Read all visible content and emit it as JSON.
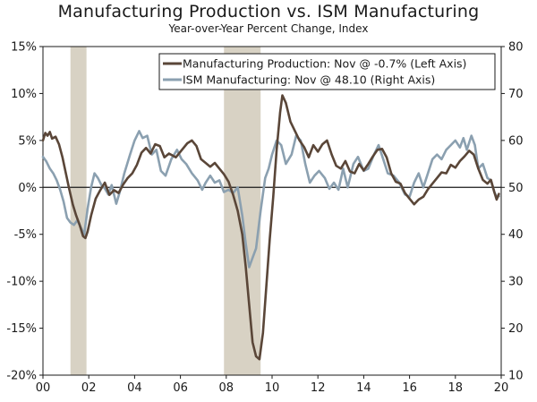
{
  "chart_data": {
    "type": "line",
    "title": "Manufacturing Production vs. ISM Manufacturing",
    "subtitle": "Year-over-Year Percent Change, Index",
    "x_axis": {
      "min": 2000,
      "max": 2020,
      "ticks": [
        2000,
        2002,
        2004,
        2006,
        2008,
        2010,
        2012,
        2014,
        2016,
        2018,
        2020
      ],
      "tick_labels": [
        "00",
        "02",
        "04",
        "06",
        "08",
        "10",
        "12",
        "14",
        "16",
        "18",
        "20"
      ]
    },
    "y_left": {
      "min": -20,
      "max": 15,
      "ticks": [
        15,
        10,
        5,
        0,
        -5,
        -10,
        -15,
        -20
      ],
      "tick_labels": [
        "15%",
        "10%",
        "5%",
        "0%",
        "-5%",
        "-10%",
        "-15%",
        "-20%"
      ]
    },
    "y_right": {
      "min": 10,
      "max": 80,
      "ticks": [
        80,
        70,
        60,
        50,
        40,
        30,
        20,
        10
      ],
      "tick_labels": [
        "80",
        "70",
        "60",
        "50",
        "40",
        "30",
        "20",
        "10"
      ]
    },
    "recessions": [
      [
        2001.2,
        2001.9
      ],
      [
        2007.9,
        2009.5
      ]
    ],
    "legend": {
      "position": "top-right"
    },
    "series": [
      {
        "name": "Manufacturing Production: Nov @ -0.7% (Left Axis)",
        "axis": "left",
        "color": "#5a4638",
        "points": [
          [
            2000.0,
            5.0
          ],
          [
            2000.1,
            5.8
          ],
          [
            2000.2,
            5.5
          ],
          [
            2000.3,
            5.9
          ],
          [
            2000.4,
            5.2
          ],
          [
            2000.55,
            5.4
          ],
          [
            2000.7,
            4.6
          ],
          [
            2000.85,
            3.2
          ],
          [
            2001.0,
            1.5
          ],
          [
            2001.15,
            -0.2
          ],
          [
            2001.3,
            -1.8
          ],
          [
            2001.45,
            -3.0
          ],
          [
            2001.6,
            -4.0
          ],
          [
            2001.75,
            -5.2
          ],
          [
            2001.85,
            -5.4
          ],
          [
            2001.95,
            -4.7
          ],
          [
            2002.1,
            -3.0
          ],
          [
            2002.3,
            -1.2
          ],
          [
            2002.5,
            -0.3
          ],
          [
            2002.7,
            0.5
          ],
          [
            2002.9,
            -0.8
          ],
          [
            2003.1,
            -0.3
          ],
          [
            2003.3,
            -0.6
          ],
          [
            2003.5,
            0.3
          ],
          [
            2003.7,
            1.0
          ],
          [
            2003.9,
            1.5
          ],
          [
            2004.1,
            2.4
          ],
          [
            2004.3,
            3.7
          ],
          [
            2004.5,
            4.2
          ],
          [
            2004.7,
            3.6
          ],
          [
            2004.9,
            4.6
          ],
          [
            2005.1,
            4.4
          ],
          [
            2005.3,
            3.2
          ],
          [
            2005.5,
            3.6
          ],
          [
            2005.8,
            3.2
          ],
          [
            2006.0,
            3.8
          ],
          [
            2006.3,
            4.7
          ],
          [
            2006.5,
            5.0
          ],
          [
            2006.7,
            4.4
          ],
          [
            2006.9,
            3.0
          ],
          [
            2007.1,
            2.6
          ],
          [
            2007.3,
            2.2
          ],
          [
            2007.5,
            2.6
          ],
          [
            2007.7,
            2.0
          ],
          [
            2007.9,
            1.4
          ],
          [
            2008.1,
            0.6
          ],
          [
            2008.3,
            -0.8
          ],
          [
            2008.5,
            -2.5
          ],
          [
            2008.7,
            -5.0
          ],
          [
            2008.85,
            -8.5
          ],
          [
            2009.0,
            -12.5
          ],
          [
            2009.15,
            -16.5
          ],
          [
            2009.3,
            -18.0
          ],
          [
            2009.45,
            -18.3
          ],
          [
            2009.6,
            -15.5
          ],
          [
            2009.75,
            -10.5
          ],
          [
            2009.9,
            -5.5
          ],
          [
            2010.05,
            -1.0
          ],
          [
            2010.2,
            4.0
          ],
          [
            2010.35,
            8.0
          ],
          [
            2010.45,
            9.8
          ],
          [
            2010.6,
            9.0
          ],
          [
            2010.8,
            7.0
          ],
          [
            2011.0,
            6.0
          ],
          [
            2011.2,
            5.0
          ],
          [
            2011.4,
            4.3
          ],
          [
            2011.6,
            3.2
          ],
          [
            2011.8,
            4.5
          ],
          [
            2012.0,
            3.8
          ],
          [
            2012.2,
            4.6
          ],
          [
            2012.4,
            5.0
          ],
          [
            2012.6,
            3.5
          ],
          [
            2012.8,
            2.3
          ],
          [
            2013.0,
            2.0
          ],
          [
            2013.2,
            2.8
          ],
          [
            2013.4,
            1.7
          ],
          [
            2013.6,
            1.5
          ],
          [
            2013.8,
            2.5
          ],
          [
            2014.0,
            1.8
          ],
          [
            2014.2,
            2.5
          ],
          [
            2014.4,
            3.3
          ],
          [
            2014.6,
            4.0
          ],
          [
            2014.8,
            4.1
          ],
          [
            2015.0,
            3.2
          ],
          [
            2015.2,
            1.5
          ],
          [
            2015.4,
            0.6
          ],
          [
            2015.6,
            0.4
          ],
          [
            2015.8,
            -0.6
          ],
          [
            2016.0,
            -1.2
          ],
          [
            2016.2,
            -1.8
          ],
          [
            2016.4,
            -1.3
          ],
          [
            2016.6,
            -1.0
          ],
          [
            2016.8,
            -0.2
          ],
          [
            2017.0,
            0.4
          ],
          [
            2017.2,
            1.0
          ],
          [
            2017.4,
            1.6
          ],
          [
            2017.6,
            1.5
          ],
          [
            2017.8,
            2.4
          ],
          [
            2018.0,
            2.1
          ],
          [
            2018.2,
            2.8
          ],
          [
            2018.4,
            3.3
          ],
          [
            2018.6,
            3.9
          ],
          [
            2018.8,
            3.5
          ],
          [
            2019.0,
            2.0
          ],
          [
            2019.2,
            0.8
          ],
          [
            2019.4,
            0.4
          ],
          [
            2019.55,
            0.8
          ],
          [
            2019.7,
            -0.5
          ],
          [
            2019.8,
            -1.3
          ],
          [
            2019.9,
            -0.7
          ]
        ]
      },
      {
        "name": "ISM Manufacturing: Nov @ 48.10 (Right Axis)",
        "axis": "right",
        "color": "#8ba0b0",
        "points": [
          [
            2000.0,
            56.5
          ],
          [
            2000.15,
            55.5
          ],
          [
            2000.3,
            54.0
          ],
          [
            2000.45,
            53.0
          ],
          [
            2000.6,
            51.5
          ],
          [
            2000.75,
            49.5
          ],
          [
            2000.9,
            47.0
          ],
          [
            2001.05,
            43.5
          ],
          [
            2001.2,
            42.5
          ],
          [
            2001.35,
            42.0
          ],
          [
            2001.5,
            43.0
          ],
          [
            2001.65,
            41.5
          ],
          [
            2001.8,
            40.0
          ],
          [
            2001.95,
            45.5
          ],
          [
            2002.1,
            50.0
          ],
          [
            2002.25,
            53.0
          ],
          [
            2002.4,
            52.0
          ],
          [
            2002.55,
            50.5
          ],
          [
            2002.7,
            49.8
          ],
          [
            2002.85,
            48.5
          ],
          [
            2003.0,
            50.5
          ],
          [
            2003.2,
            46.5
          ],
          [
            2003.35,
            49.0
          ],
          [
            2003.55,
            53.0
          ],
          [
            2003.8,
            57.0
          ],
          [
            2004.0,
            60.0
          ],
          [
            2004.2,
            62.0
          ],
          [
            2004.35,
            60.5
          ],
          [
            2004.55,
            61.0
          ],
          [
            2004.75,
            57.0
          ],
          [
            2004.95,
            58.0
          ],
          [
            2005.15,
            53.5
          ],
          [
            2005.35,
            52.5
          ],
          [
            2005.6,
            56.0
          ],
          [
            2005.85,
            58.0
          ],
          [
            2006.05,
            56.0
          ],
          [
            2006.25,
            55.0
          ],
          [
            2006.5,
            53.0
          ],
          [
            2006.75,
            51.5
          ],
          [
            2006.95,
            49.5
          ],
          [
            2007.1,
            51.0
          ],
          [
            2007.3,
            52.5
          ],
          [
            2007.5,
            51.0
          ],
          [
            2007.7,
            51.5
          ],
          [
            2007.9,
            49.0
          ],
          [
            2008.1,
            49.5
          ],
          [
            2008.3,
            48.8
          ],
          [
            2008.5,
            50.0
          ],
          [
            2008.7,
            44.0
          ],
          [
            2008.85,
            38.0
          ],
          [
            2009.0,
            33.0
          ],
          [
            2009.15,
            35.0
          ],
          [
            2009.3,
            37.0
          ],
          [
            2009.5,
            45.0
          ],
          [
            2009.7,
            52.0
          ],
          [
            2009.85,
            54.0
          ],
          [
            2010.0,
            57.0
          ],
          [
            2010.2,
            60.0
          ],
          [
            2010.4,
            59.0
          ],
          [
            2010.6,
            55.0
          ],
          [
            2010.85,
            57.0
          ],
          [
            2011.05,
            61.0
          ],
          [
            2011.25,
            60.0
          ],
          [
            2011.45,
            55.0
          ],
          [
            2011.65,
            51.0
          ],
          [
            2011.85,
            52.5
          ],
          [
            2012.05,
            53.5
          ],
          [
            2012.3,
            52.0
          ],
          [
            2012.5,
            49.7
          ],
          [
            2012.7,
            51.0
          ],
          [
            2012.9,
            49.5
          ],
          [
            2013.1,
            54.0
          ],
          [
            2013.3,
            50.0
          ],
          [
            2013.55,
            55.0
          ],
          [
            2013.75,
            56.5
          ],
          [
            2014.0,
            53.5
          ],
          [
            2014.2,
            54.0
          ],
          [
            2014.45,
            57.0
          ],
          [
            2014.65,
            59.0
          ],
          [
            2014.85,
            56.0
          ],
          [
            2015.05,
            53.0
          ],
          [
            2015.3,
            52.5
          ],
          [
            2015.55,
            51.0
          ],
          [
            2015.8,
            48.5
          ],
          [
            2016.0,
            48.0
          ],
          [
            2016.2,
            51.0
          ],
          [
            2016.4,
            53.0
          ],
          [
            2016.6,
            50.0
          ],
          [
            2016.8,
            53.0
          ],
          [
            2017.0,
            56.0
          ],
          [
            2017.2,
            57.0
          ],
          [
            2017.4,
            56.0
          ],
          [
            2017.6,
            58.0
          ],
          [
            2017.8,
            59.0
          ],
          [
            2018.0,
            60.0
          ],
          [
            2018.2,
            58.5
          ],
          [
            2018.35,
            60.5
          ],
          [
            2018.5,
            58.0
          ],
          [
            2018.7,
            61.0
          ],
          [
            2018.85,
            59.0
          ],
          [
            2019.0,
            54.0
          ],
          [
            2019.2,
            55.0
          ],
          [
            2019.4,
            52.0
          ],
          [
            2019.55,
            51.5
          ],
          [
            2019.7,
            49.0
          ],
          [
            2019.8,
            48.0
          ],
          [
            2019.9,
            48.1
          ]
        ]
      }
    ]
  }
}
